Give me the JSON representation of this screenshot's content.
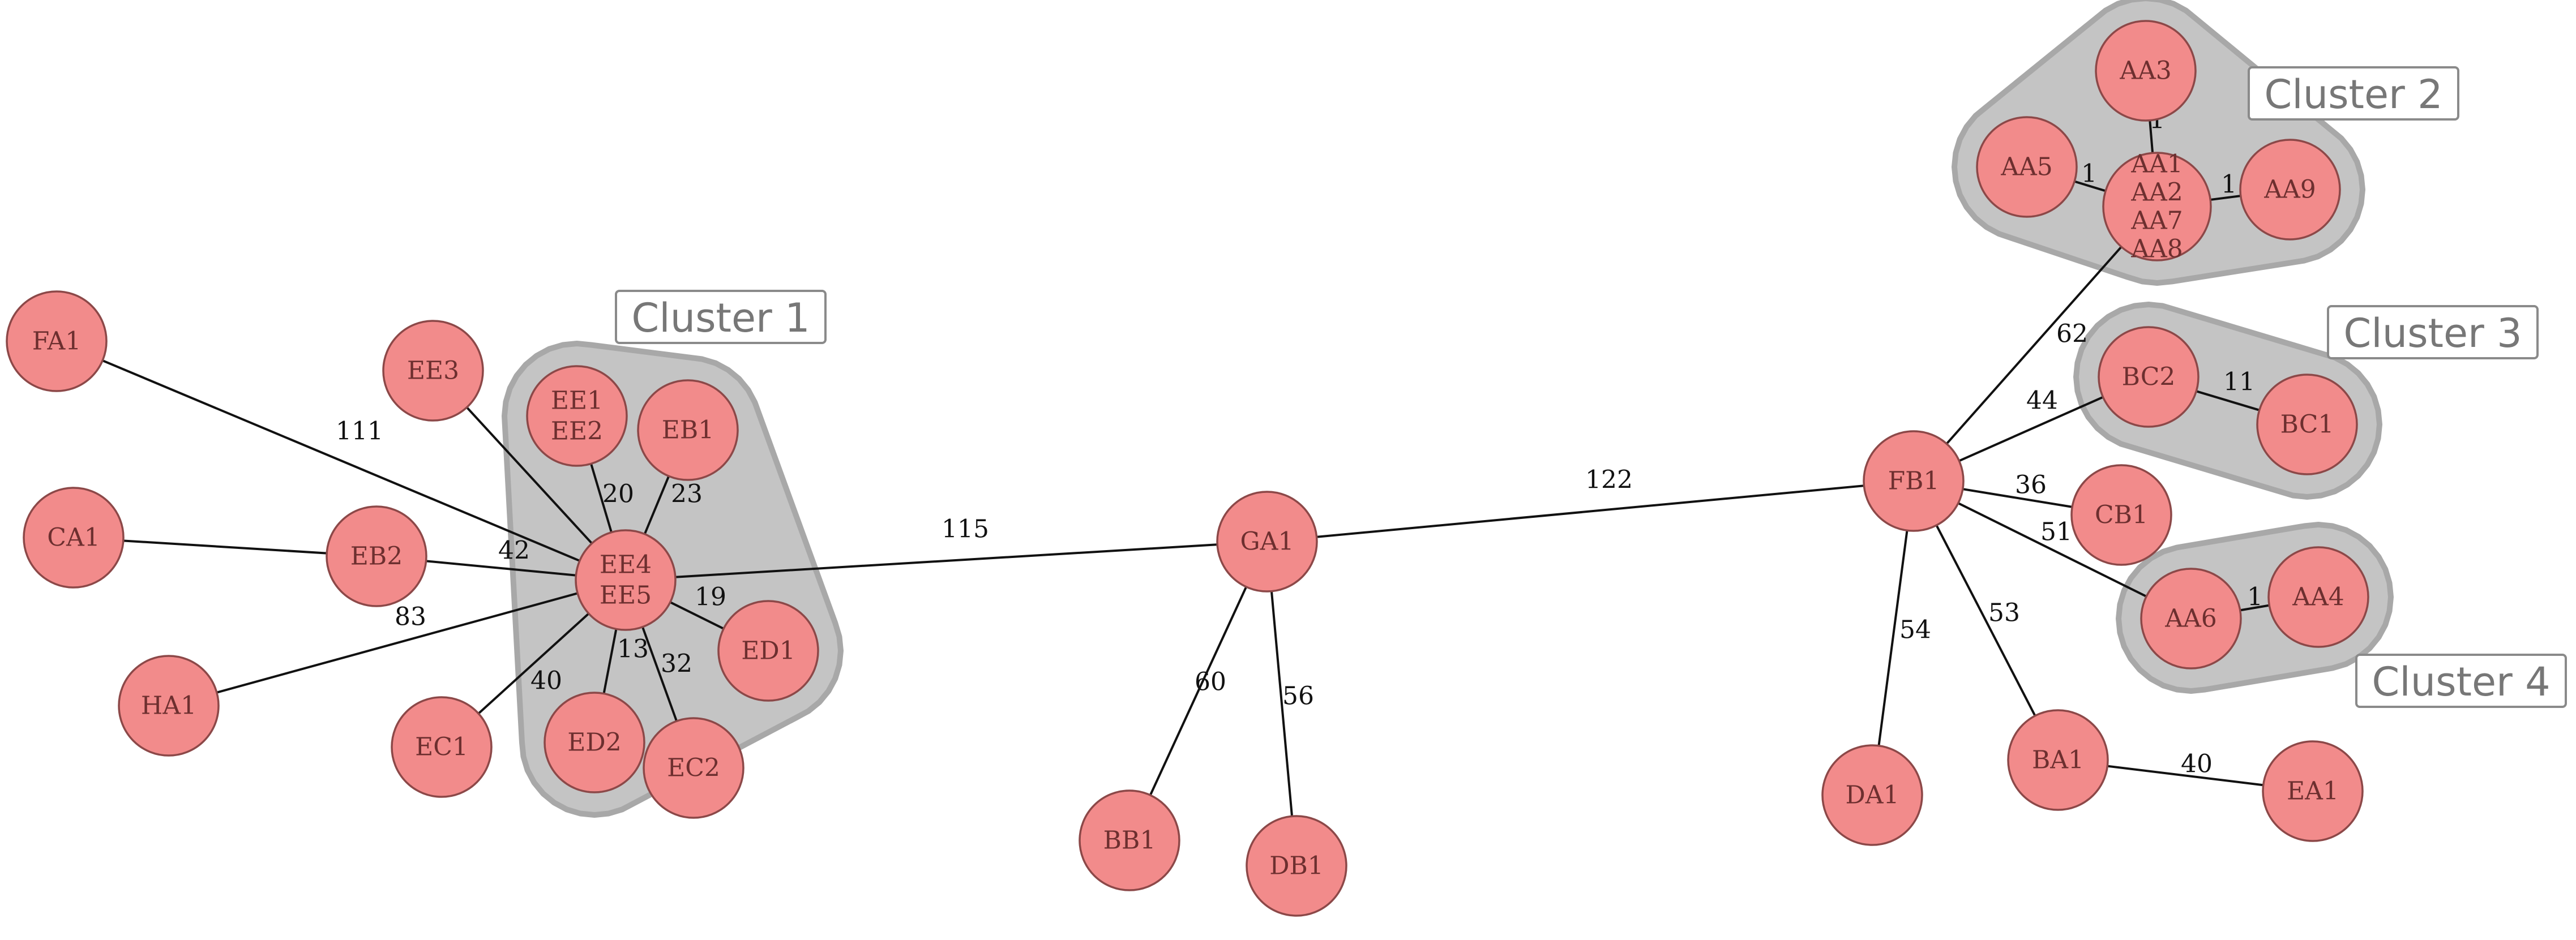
{
  "diagram": {
    "nodes": [
      {
        "id": "FA1",
        "lines": [
          "FA1"
        ]
      },
      {
        "id": "CA1",
        "lines": [
          "CA1"
        ]
      },
      {
        "id": "HA1",
        "lines": [
          "HA1"
        ]
      },
      {
        "id": "EB2",
        "lines": [
          "EB2"
        ]
      },
      {
        "id": "EE3",
        "lines": [
          "EE3"
        ]
      },
      {
        "id": "EE1EE2",
        "lines": [
          "EE1",
          "EE2"
        ]
      },
      {
        "id": "EB1",
        "lines": [
          "EB1"
        ]
      },
      {
        "id": "EE4EE5",
        "lines": [
          "EE4",
          "EE5"
        ]
      },
      {
        "id": "ED1",
        "lines": [
          "ED1"
        ]
      },
      {
        "id": "ED2",
        "lines": [
          "ED2"
        ]
      },
      {
        "id": "EC1",
        "lines": [
          "EC1"
        ]
      },
      {
        "id": "EC2",
        "lines": [
          "EC2"
        ]
      },
      {
        "id": "GA1",
        "lines": [
          "GA1"
        ]
      },
      {
        "id": "BB1",
        "lines": [
          "BB1"
        ]
      },
      {
        "id": "DB1",
        "lines": [
          "DB1"
        ]
      },
      {
        "id": "FB1",
        "lines": [
          "FB1"
        ]
      },
      {
        "id": "AA3",
        "lines": [
          "AA3"
        ]
      },
      {
        "id": "AA5",
        "lines": [
          "AA5"
        ]
      },
      {
        "id": "AAgroup",
        "lines": [
          "AA1",
          "AA2",
          "AA7",
          "AA8"
        ]
      },
      {
        "id": "AA9",
        "lines": [
          "AA9"
        ]
      },
      {
        "id": "BC2",
        "lines": [
          "BC2"
        ]
      },
      {
        "id": "BC1",
        "lines": [
          "BC1"
        ]
      },
      {
        "id": "CB1",
        "lines": [
          "CB1"
        ]
      },
      {
        "id": "AA6",
        "lines": [
          "AA6"
        ]
      },
      {
        "id": "AA4",
        "lines": [
          "AA4"
        ]
      },
      {
        "id": "DA1",
        "lines": [
          "DA1"
        ]
      },
      {
        "id": "BA1",
        "lines": [
          "BA1"
        ]
      },
      {
        "id": "EA1",
        "lines": [
          "EA1"
        ]
      }
    ],
    "edges": [
      {
        "source": "FA1",
        "target": "EE4EE5",
        "label": "111"
      },
      {
        "source": "CA1",
        "target": "EB2",
        "label": ""
      },
      {
        "source": "EB2",
        "target": "EE4EE5",
        "label": "42"
      },
      {
        "source": "HA1",
        "target": "EE4EE5",
        "label": "83"
      },
      {
        "source": "EE3",
        "target": "EE4EE5",
        "label": ""
      },
      {
        "source": "EE1EE2",
        "target": "EE4EE5",
        "label": "20"
      },
      {
        "source": "EB1",
        "target": "EE4EE5",
        "label": "23"
      },
      {
        "source": "ED1",
        "target": "EE4EE5",
        "label": "19"
      },
      {
        "source": "ED2",
        "target": "EE4EE5",
        "label": "13"
      },
      {
        "source": "EC1",
        "target": "EE4EE5",
        "label": "40"
      },
      {
        "source": "EC2",
        "target": "EE4EE5",
        "label": "32"
      },
      {
        "source": "EE4EE5",
        "target": "GA1",
        "label": "115"
      },
      {
        "source": "GA1",
        "target": "BB1",
        "label": "60"
      },
      {
        "source": "GA1",
        "target": "DB1",
        "label": "56"
      },
      {
        "source": "GA1",
        "target": "FB1",
        "label": "122"
      },
      {
        "source": "FB1",
        "target": "AAgroup",
        "label": "62"
      },
      {
        "source": "AA3",
        "target": "AAgroup",
        "label": "1"
      },
      {
        "source": "AA5",
        "target": "AAgroup",
        "label": "1"
      },
      {
        "source": "AAgroup",
        "target": "AA9",
        "label": "1"
      },
      {
        "source": "FB1",
        "target": "BC2",
        "label": "44"
      },
      {
        "source": "BC2",
        "target": "BC1",
        "label": "11"
      },
      {
        "source": "FB1",
        "target": "CB1",
        "label": "36"
      },
      {
        "source": "FB1",
        "target": "AA6",
        "label": "51"
      },
      {
        "source": "AA6",
        "target": "AA4",
        "label": "1"
      },
      {
        "source": "FB1",
        "target": "DA1",
        "label": "54"
      },
      {
        "source": "FB1",
        "target": "BA1",
        "label": "53"
      },
      {
        "source": "BA1",
        "target": "EA1",
        "label": "40"
      }
    ],
    "clusters": [
      {
        "id": "c1",
        "label": "Cluster 1"
      },
      {
        "id": "c2",
        "label": "Cluster 2"
      },
      {
        "id": "c3",
        "label": "Cluster 3"
      },
      {
        "id": "c4",
        "label": "Cluster 4"
      }
    ],
    "colors": {
      "node_fill": "#f28b8b",
      "node_stroke": "#8c4848",
      "hull_fill": "#c4c4c4",
      "edge": "#111111"
    }
  }
}
